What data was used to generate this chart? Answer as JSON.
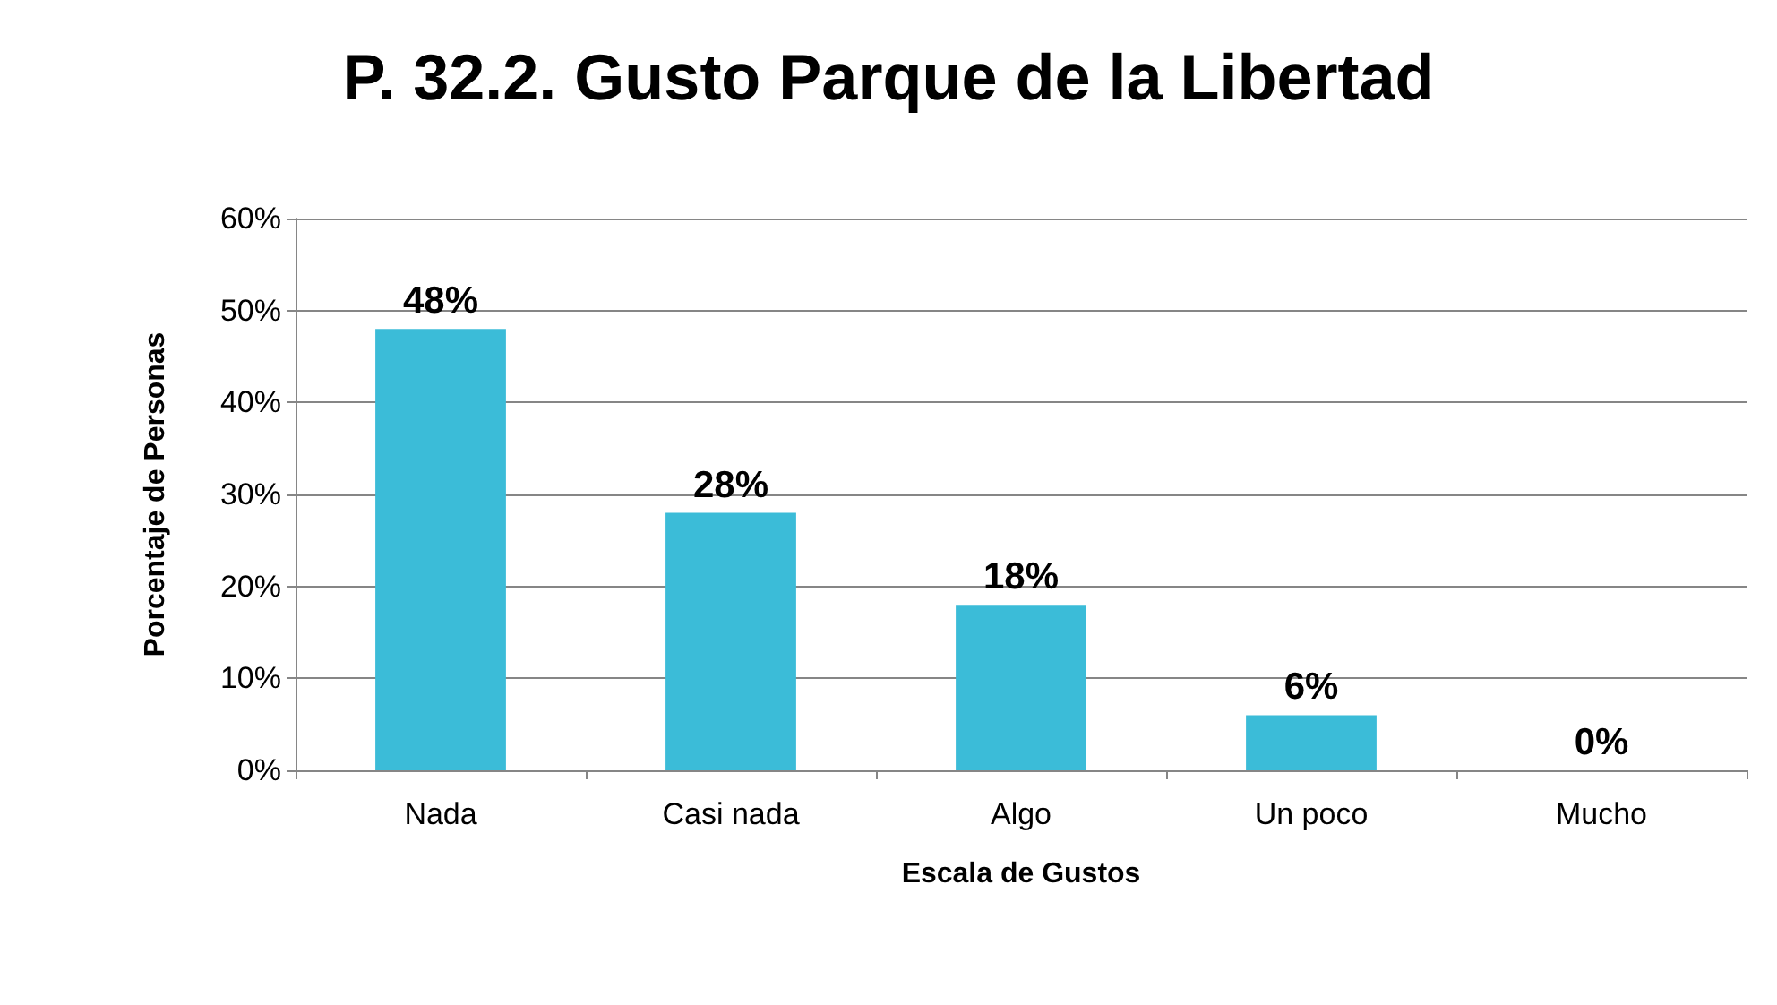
{
  "chart_data": {
    "type": "bar",
    "title": "P. 32.2. Gusto Parque de la Libertad",
    "xlabel": "Escala de Gustos",
    "ylabel": "Porcentaje de Personas",
    "categories": [
      "Nada",
      "Casi nada",
      "Algo",
      "Un poco",
      "Mucho"
    ],
    "values": [
      48,
      28,
      18,
      6,
      0
    ],
    "color": "#3bbcd8",
    "value_labels": [
      "48%",
      "28%",
      "18%",
      "6%",
      "0%"
    ],
    "ylim": [
      0,
      60
    ],
    "yticks": [
      {
        "value": 0,
        "label": "0%"
      },
      {
        "value": 10,
        "label": "10%"
      },
      {
        "value": 20,
        "label": "20%"
      },
      {
        "value": 30,
        "label": "30%"
      },
      {
        "value": 40,
        "label": "40%"
      },
      {
        "value": 50,
        "label": "50%"
      },
      {
        "value": 60,
        "label": "60%"
      }
    ],
    "grid": "y"
  }
}
